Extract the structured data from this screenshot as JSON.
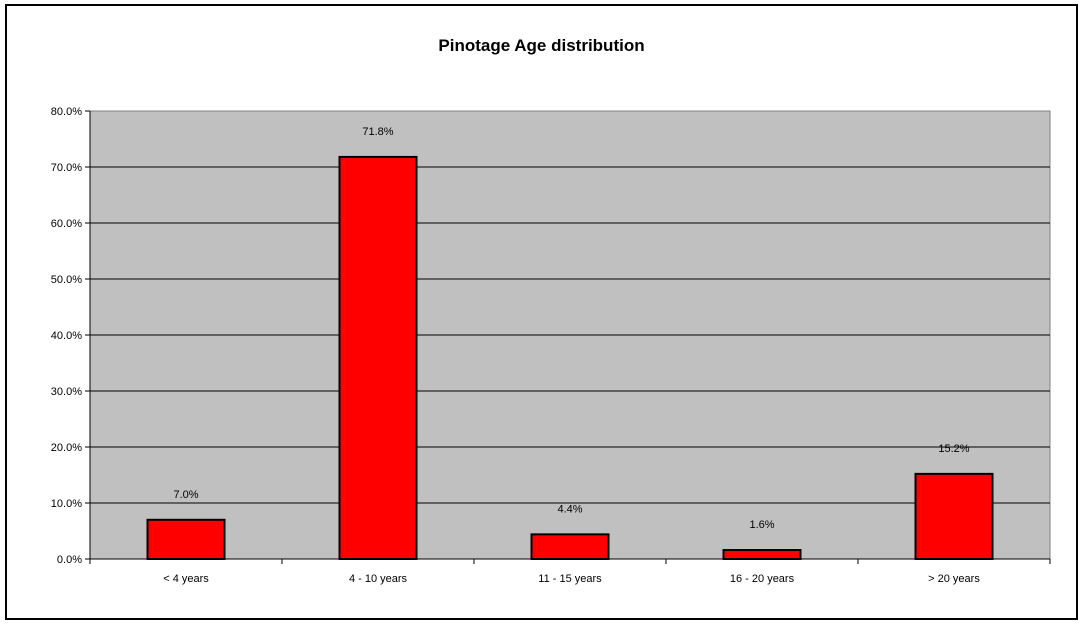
{
  "chart_data": {
    "type": "bar",
    "title": "Pinotage Age distribution",
    "categories": [
      "< 4 years",
      "4 - 10 years",
      "11 - 15 years",
      "16 - 20 years",
      "> 20 years"
    ],
    "values": [
      7.0,
      71.8,
      4.4,
      1.6,
      15.2
    ],
    "data_labels": [
      "7.0%",
      "71.8%",
      "4.4%",
      "1.6%",
      "15.2%"
    ],
    "y_ticks": [
      0,
      10,
      20,
      30,
      40,
      50,
      60,
      70,
      80
    ],
    "y_tick_labels": [
      "0.0%",
      "10.0%",
      "20.0%",
      "30.0%",
      "40.0%",
      "50.0%",
      "60.0%",
      "70.0%",
      "80.0%"
    ],
    "ylim": [
      0,
      80
    ],
    "xlabel": "",
    "ylabel": "",
    "grid": true,
    "legend": "none",
    "colors": {
      "bar_fill": "#ff0000",
      "bar_stroke": "#000000",
      "plot_background": "#c0c0c0",
      "gridline": "#000000"
    }
  }
}
